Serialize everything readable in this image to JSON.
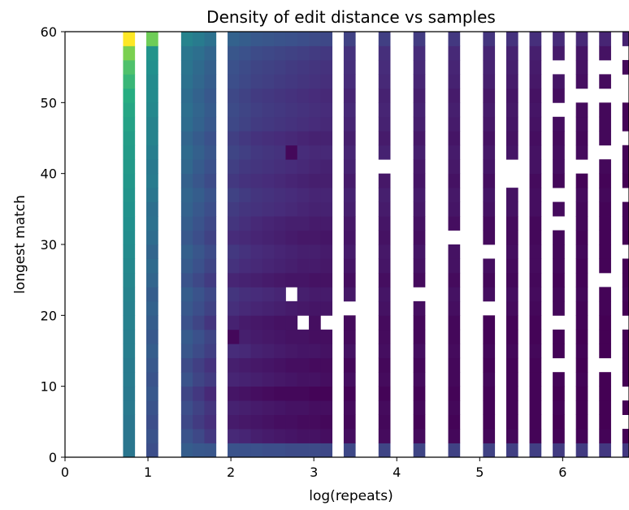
{
  "chart_data": {
    "type": "heatmap",
    "title": "Density of edit distance vs samples",
    "xlabel": "log(repeats)",
    "ylabel": "longest match",
    "xlim": [
      0,
      6.8
    ],
    "ylim": [
      0,
      60
    ],
    "xticks": [
      "0",
      "1",
      "2",
      "3",
      "4",
      "5",
      "6"
    ],
    "yticks": [
      "0",
      "10",
      "20",
      "30",
      "40",
      "50",
      "60"
    ],
    "colormap": "viridis",
    "bins": {
      "x_start": 0,
      "x_width": 0.14,
      "y_start": 0,
      "y_width": 2
    },
    "columns": [
      {
        "x": 0.7,
        "cells": [
          0.4,
          0.4,
          0.4,
          0.41,
          0.41,
          0.42,
          0.42,
          0.43,
          0.43,
          0.44,
          0.44,
          0.45,
          0.46,
          0.47,
          0.48,
          0.49,
          0.5,
          0.51,
          0.52,
          0.53,
          0.54,
          0.55,
          0.56,
          0.58,
          0.6,
          0.63,
          0.67,
          0.72,
          0.8,
          1.0
        ]
      },
      {
        "x": 0.98,
        "cells": [
          0.24,
          0.26,
          0.24,
          0.26,
          0.28,
          0.26,
          0.28,
          0.3,
          0.28,
          0.3,
          0.32,
          0.3,
          0.33,
          0.35,
          0.33,
          0.36,
          0.38,
          0.37,
          0.4,
          0.42,
          0.41,
          0.43,
          0.45,
          0.45,
          0.47,
          0.48,
          0.48,
          0.5,
          0.52,
          0.78
        ]
      },
      {
        "x": 1.4,
        "cells": [
          0.3,
          0.26,
          0.22,
          0.24,
          0.21,
          0.26,
          0.23,
          0.27,
          0.29,
          0.25,
          0.28,
          0.3,
          0.26,
          0.29,
          0.31,
          0.28,
          0.3,
          0.32,
          0.33,
          0.31,
          0.34,
          0.35,
          0.33,
          0.36,
          0.37,
          0.36,
          0.38,
          0.39,
          0.4,
          0.45
        ]
      },
      {
        "x": 1.54,
        "cells": [
          0.28,
          0.22,
          0.18,
          0.2,
          0.17,
          0.21,
          0.19,
          0.23,
          0.25,
          0.21,
          0.24,
          0.26,
          0.22,
          0.25,
          0.27,
          0.24,
          0.26,
          0.28,
          0.3,
          0.27,
          0.29,
          0.31,
          0.29,
          0.32,
          0.33,
          0.32,
          0.34,
          0.35,
          0.37,
          0.42
        ]
      },
      {
        "x": 1.68,
        "cells": [
          0.27,
          0.17,
          0.14,
          0.16,
          0.12,
          0.18,
          0.15,
          0.19,
          0.21,
          0.16,
          0.2,
          0.22,
          0.18,
          0.21,
          0.23,
          0.2,
          0.22,
          0.24,
          0.26,
          0.23,
          0.25,
          0.27,
          0.25,
          0.28,
          0.29,
          0.28,
          0.3,
          0.31,
          0.33,
          0.38
        ]
      },
      {
        "x": 1.96,
        "cells": [
          0.26,
          0.12,
          0.08,
          0.1,
          0.06,
          0.11,
          0.09,
          0.13,
          0.02,
          0.1,
          0.14,
          0.16,
          0.11,
          0.15,
          0.17,
          0.13,
          0.16,
          0.18,
          0.2,
          0.17,
          0.19,
          0.21,
          0.19,
          0.22,
          0.23,
          0.22,
          0.24,
          0.25,
          0.27,
          0.32
        ]
      },
      {
        "x": 2.1,
        "cells": [
          0.25,
          0.11,
          0.07,
          0.09,
          0.05,
          0.1,
          0.08,
          0.12,
          0.09,
          0.08,
          0.12,
          0.14,
          0.1,
          0.13,
          0.15,
          0.12,
          0.14,
          0.16,
          0.18,
          0.15,
          0.17,
          0.19,
          0.17,
          0.2,
          0.21,
          0.2,
          0.22,
          0.23,
          0.25,
          0.3
        ]
      },
      {
        "x": 2.24,
        "cells": [
          0.25,
          0.09,
          0.06,
          0.08,
          0.04,
          0.09,
          0.07,
          0.1,
          0.08,
          0.07,
          0.11,
          0.13,
          0.09,
          0.12,
          0.13,
          0.11,
          0.12,
          0.15,
          0.16,
          0.14,
          0.16,
          0.17,
          0.15,
          0.18,
          0.19,
          0.18,
          0.2,
          0.21,
          0.23,
          0.28
        ]
      },
      {
        "x": 2.38,
        "cells": [
          0.24,
          0.08,
          0.05,
          0.07,
          0.03,
          0.08,
          0.06,
          0.09,
          0.07,
          0.06,
          0.1,
          0.12,
          0.08,
          0.11,
          0.12,
          0.1,
          0.11,
          0.14,
          0.15,
          0.13,
          0.15,
          0.16,
          0.14,
          0.17,
          0.18,
          0.17,
          0.19,
          0.2,
          0.22,
          0.27
        ]
      },
      {
        "x": 2.52,
        "cells": [
          0.24,
          0.07,
          0.04,
          0.06,
          0.02,
          0.07,
          0.05,
          0.08,
          0.06,
          0.05,
          0.09,
          0.11,
          0.07,
          0.1,
          0.11,
          0.09,
          0.1,
          0.13,
          0.14,
          0.12,
          0.14,
          0.15,
          0.13,
          0.16,
          0.17,
          0.16,
          0.18,
          0.19,
          0.21,
          0.26
        ]
      },
      {
        "x": 2.66,
        "cells": [
          0.23,
          0.06,
          0.04,
          0.05,
          0.02,
          0.06,
          0.04,
          0.07,
          0.05,
          0.05,
          0.08,
          null,
          0.06,
          0.09,
          0.1,
          0.08,
          0.09,
          0.12,
          0.13,
          0.11,
          0.13,
          0.02,
          0.12,
          0.15,
          0.16,
          0.15,
          0.17,
          0.18,
          0.2,
          0.25
        ]
      },
      {
        "x": 2.8,
        "cells": [
          0.23,
          0.05,
          0.03,
          0.05,
          0.02,
          0.05,
          0.04,
          0.06,
          0.05,
          null,
          0.07,
          0.09,
          0.06,
          0.08,
          0.09,
          0.07,
          0.09,
          0.11,
          0.12,
          0.1,
          0.12,
          0.13,
          0.11,
          0.14,
          0.15,
          0.14,
          0.16,
          0.17,
          0.19,
          0.24
        ]
      },
      {
        "x": 2.94,
        "cells": [
          0.23,
          0.05,
          0.03,
          0.04,
          0.01,
          0.05,
          0.03,
          0.06,
          0.04,
          0.04,
          0.06,
          0.08,
          0.05,
          0.08,
          0.09,
          0.07,
          0.08,
          0.1,
          0.11,
          0.09,
          0.11,
          0.12,
          0.1,
          0.13,
          0.14,
          0.13,
          0.15,
          0.16,
          0.18,
          0.23
        ]
      },
      {
        "x": 3.08,
        "cells": [
          0.22,
          0.04,
          0.02,
          0.04,
          0.01,
          0.04,
          0.03,
          0.05,
          0.04,
          null,
          0.06,
          0.08,
          0.05,
          0.07,
          0.08,
          0.06,
          0.08,
          0.1,
          0.11,
          0.09,
          0.1,
          0.12,
          0.1,
          0.12,
          0.13,
          0.12,
          0.14,
          0.15,
          0.17,
          0.22
        ]
      },
      {
        "x": 3.36,
        "cells": [
          0.22,
          0.04,
          0.02,
          0.03,
          0.01,
          0.04,
          0.02,
          0.05,
          0.03,
          0.03,
          null,
          0.07,
          0.04,
          0.06,
          0.08,
          0.06,
          0.07,
          0.09,
          0.1,
          0.08,
          0.1,
          0.11,
          0.09,
          0.11,
          0.12,
          0.11,
          0.13,
          0.14,
          0.15,
          0.2
        ]
      },
      {
        "x": 3.78,
        "cells": [
          0.21,
          0.03,
          0.02,
          0.03,
          0.01,
          0.03,
          0.02,
          0.04,
          0.03,
          0.03,
          0.05,
          0.06,
          0.04,
          0.06,
          0.07,
          0.05,
          0.06,
          0.08,
          0.09,
          0.07,
          null,
          0.1,
          0.08,
          0.1,
          0.11,
          0.1,
          0.12,
          0.13,
          0.14,
          0.19
        ]
      },
      {
        "x": 4.2,
        "cells": [
          0.21,
          0.03,
          0.01,
          0.02,
          0.01,
          0.03,
          0.02,
          0.04,
          0.02,
          0.02,
          0.04,
          null,
          0.03,
          0.05,
          0.06,
          0.04,
          0.05,
          0.07,
          0.08,
          0.06,
          0.07,
          0.09,
          0.07,
          0.09,
          0.1,
          0.09,
          0.11,
          0.12,
          0.13,
          0.18
        ]
      },
      {
        "x": 4.62,
        "cells": [
          0.2,
          0.02,
          0.01,
          0.02,
          0.01,
          0.02,
          0.02,
          0.03,
          0.02,
          0.02,
          0.04,
          0.05,
          0.03,
          0.05,
          0.05,
          null,
          0.04,
          0.06,
          0.07,
          0.05,
          0.07,
          0.08,
          0.06,
          0.08,
          0.09,
          0.08,
          0.1,
          0.11,
          0.12,
          0.17
        ]
      },
      {
        "x": 5.04,
        "cells": [
          0.2,
          0.02,
          0.01,
          0.01,
          0.01,
          0.02,
          0.01,
          0.02,
          0.01,
          0.01,
          null,
          0.04,
          0.02,
          0.04,
          null,
          0.03,
          0.03,
          0.05,
          0.06,
          0.04,
          0.06,
          0.07,
          0.05,
          0.07,
          0.08,
          0.07,
          0.09,
          0.1,
          0.11,
          0.16
        ]
      },
      {
        "x": 5.32,
        "cells": [
          0.19,
          0.02,
          0.01,
          0.01,
          0.01,
          0.01,
          0.01,
          0.02,
          0.01,
          0.01,
          0.03,
          0.04,
          0.02,
          0.03,
          0.04,
          0.03,
          0.03,
          0.05,
          0.05,
          null,
          null,
          0.06,
          0.05,
          0.06,
          0.07,
          0.06,
          0.08,
          0.09,
          0.1,
          0.15
        ]
      },
      {
        "x": 5.6,
        "cells": [
          0.19,
          0.01,
          0.01,
          0.01,
          0.01,
          0.01,
          0.01,
          0.02,
          0.01,
          0.01,
          0.02,
          0.03,
          0.02,
          0.03,
          0.03,
          0.02,
          0.02,
          0.04,
          0.04,
          0.03,
          0.05,
          0.05,
          0.04,
          0.05,
          0.06,
          0.05,
          0.07,
          0.08,
          0.09,
          0.14
        ]
      },
      {
        "x": 5.88,
        "cells": [
          0.18,
          0.01,
          0.0,
          0.01,
          0.0,
          0.01,
          null,
          0.01,
          0.01,
          null,
          0.02,
          0.02,
          0.01,
          0.02,
          0.02,
          0.02,
          null,
          0.03,
          null,
          0.02,
          0.04,
          0.04,
          0.03,
          0.04,
          null,
          0.04,
          0.06,
          null,
          0.08,
          0.13
        ]
      },
      {
        "x": 6.16,
        "cells": [
          0.18,
          0.01,
          0.0,
          0.0,
          0.0,
          0.01,
          0.0,
          0.01,
          0.0,
          0.01,
          0.01,
          0.02,
          0.01,
          0.01,
          0.02,
          0.01,
          0.02,
          0.02,
          0.03,
          0.01,
          null,
          0.03,
          0.02,
          0.03,
          0.03,
          null,
          0.04,
          0.05,
          0.06,
          0.12
        ]
      },
      {
        "x": 6.44,
        "cells": [
          0.17,
          0.01,
          0.0,
          0.0,
          0.0,
          0.0,
          null,
          0.0,
          0.0,
          0.0,
          0.01,
          0.01,
          null,
          0.01,
          0.01,
          0.01,
          0.01,
          0.01,
          0.02,
          0.01,
          0.02,
          null,
          0.02,
          0.02,
          0.02,
          null,
          0.03,
          null,
          0.05,
          0.11
        ]
      },
      {
        "x": 6.72,
        "cells": [
          0.17,
          0.0,
          null,
          0.0,
          null,
          0.0,
          0.0,
          0.0,
          0.0,
          null,
          0.0,
          0.01,
          0.0,
          0.0,
          null,
          0.0,
          0.01,
          0.01,
          null,
          0.0,
          0.01,
          0.01,
          null,
          0.01,
          0.01,
          null,
          null,
          0.02,
          null,
          0.1
        ]
      }
    ]
  }
}
